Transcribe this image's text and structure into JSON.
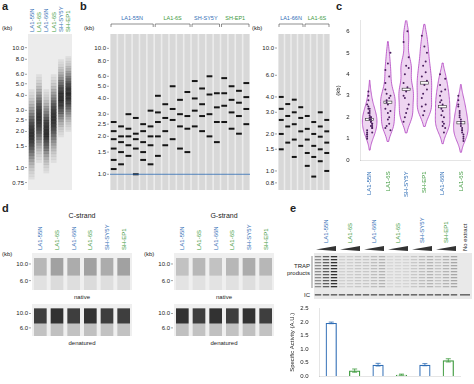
{
  "panels": {
    "a": {
      "letter": "a",
      "axis_label": "(kb)",
      "ylim_kb": [
        13,
        0.65
      ],
      "markers_kb": [
        {
          "value": 10,
          "label": "10.0"
        },
        {
          "value": 8,
          "label": "8.0"
        },
        {
          "value": 6,
          "label": "6.0"
        },
        {
          "value": 5,
          "label": "5.0"
        },
        {
          "value": 4,
          "label": "4.0"
        },
        {
          "value": 3,
          "label": "3.0"
        },
        2.5,
        {
          "value": 2,
          "label": "2.0"
        },
        1.5,
        {
          "value": 1,
          "label": "1.0"
        },
        0.75
      ],
      "lanes": [
        {
          "label": "LA1-55N",
          "color": "#2f6db5",
          "smear_kb": [
            0.8,
            4.5
          ]
        },
        {
          "label": "LA1-6S",
          "color": "#3d9a3d",
          "smear_kb": [
            1.1,
            6.0
          ]
        },
        {
          "label": "LA1-66N",
          "color": "#2f6db5",
          "smear_kb": [
            0.9,
            4.5
          ]
        },
        {
          "label": "LA1-6S",
          "color": "#3d9a3d",
          "smear_kb": [
            1.1,
            6.0
          ]
        },
        {
          "label": "SH-SY5Y",
          "color": "#2f6db5",
          "smear_kb": [
            1.8,
            8.0
          ]
        },
        {
          "label": "SH-EP1",
          "color": "#3d9a3d",
          "smear_kb": [
            2.0,
            8.5
          ]
        }
      ]
    },
    "b": {
      "letter": "b",
      "gels": [
        {
          "axis_label": "(kb)",
          "ylim_kb": [
            13,
            0.75
          ],
          "reference_line_kb": 1.0,
          "markers_kb": [
            {
              "value": 10,
              "label": "10.0"
            },
            {
              "value": 8,
              "label": "8.0"
            },
            {
              "value": 6,
              "label": "6.0"
            },
            {
              "value": 5,
              "label": "5.0"
            },
            {
              "value": 4,
              "label": "4.0"
            },
            {
              "value": 3,
              "label": "3.0"
            },
            2.5,
            {
              "value": 2,
              "label": "2.0"
            },
            1.5,
            {
              "value": 1,
              "label": "1.0"
            }
          ],
          "groups": [
            {
              "label": "LA1-55N",
              "color": "#2f6db5",
              "bands_kb": [
                [
                  2.6,
                  2.2,
                  1.9,
                  1.6,
                  1.3,
                  1.1
                ],
                [
                  2.4,
                  2.0,
                  1.8,
                  1.5,
                  1.2
                ],
                [
                  3.0,
                  2.3,
                  2.0,
                  1.7,
                  1.4
                ],
                [
                  2.8,
                  2.1,
                  1.9,
                  1.6,
                  1.0
                ],
                [
                  2.5,
                  2.2,
                  1.8,
                  1.5,
                  1.3
                ],
                [
                  3.2,
                  2.4,
                  2.0,
                  1.7,
                  1.2
                ]
              ]
            },
            {
              "label": "LA1-6S",
              "color": "#3d9a3d",
              "bands_kb": [
                [
                  4.2,
                  3.1,
                  2.6,
                  2.0,
                  1.4
                ],
                [
                  3.6,
                  2.8,
                  2.2,
                  1.7
                ],
                [
                  5.0,
                  3.3,
                  2.7,
                  1.9
                ],
                [
                  3.9,
                  3.0,
                  2.4,
                  1.6
                ],
                [
                  4.5,
                  2.9,
                  2.3,
                  1.5
                ]
              ]
            },
            {
              "label": "SH-SY5Y",
              "color": "#2f6db5",
              "bands_kb": [
                [
                  5.5,
                  4.0,
                  3.2,
                  2.4
                ],
                [
                  4.8,
                  3.6,
                  2.9,
                  2.2
                ],
                [
                  6.0,
                  4.3,
                  3.0,
                  2.0
                ],
                [
                  4.4,
                  3.4,
                  2.6,
                  1.8
                ]
              ]
            },
            {
              "label": "SH-EP1",
              "color": "#3d9a3d",
              "bands_kb": [
                [
                  5.8,
                  4.4,
                  3.5,
                  2.6
                ],
                [
                  5.0,
                  3.9,
                  3.1,
                  2.3
                ],
                [
                  4.6,
                  3.7,
                  2.9,
                  2.1
                ],
                [
                  5.3,
                  4.1,
                  3.3,
                  2.5
                ]
              ]
            }
          ]
        },
        {
          "axis_label": "(kb)",
          "ylim_kb": [
            13,
            0.7
          ],
          "markers_kb": [
            {
              "value": 10,
              "label": "10.0"
            },
            {
              "value": 6,
              "label": "6.0"
            },
            {
              "value": 4,
              "label": "4.0"
            },
            {
              "value": 3,
              "label": "3.0"
            },
            {
              "value": 2,
              "label": "2.0"
            },
            1.5,
            {
              "value": 1,
              "label": "1.0"
            },
            0.8
          ],
          "groups": [
            {
              "label": "LA1-66N",
              "color": "#2f6db5",
              "bands_kb": [
                [
                  4.0,
                  3.2,
                  2.6,
                  2.0,
                  1.5
                ],
                [
                  3.5,
                  2.8,
                  2.3,
                  1.7
                ],
                [
                  3.8,
                  3.0,
                  2.4,
                  1.8,
                  1.3
                ],
                [
                  3.3,
                  2.7,
                  2.1,
                  1.6
                ]
              ]
            },
            {
              "label": "LA1-6S",
              "color": "#3d9a3d",
              "bands_kb": [
                [
                  2.8,
                  2.2,
                  1.8,
                  1.4,
                  1.1
                ],
                [
                  2.5,
                  2.0,
                  1.6,
                  1.3,
                  0.9
                ],
                [
                  3.0,
                  2.3,
                  1.9,
                  1.5,
                  1.2
                ],
                [
                  2.6,
                  2.1,
                  1.7,
                  1.4,
                  1.0
                ]
              ]
            }
          ]
        }
      ]
    },
    "d": {
      "letter": "d",
      "blots": [
        {
          "title": "C-strand",
          "axis_label": "(kb)",
          "ylim_kb": [
            14,
            4.5
          ],
          "markers_kb": [
            {
              "value": 10,
              "label": "10.0"
            },
            {
              "value": 6,
              "label": "6.0"
            }
          ],
          "lanes": [
            {
              "label": "LA1-55N",
              "color": "#2f6db5"
            },
            {
              "label": "LA1-6S",
              "color": "#3d9a3d"
            },
            {
              "label": "LA1-66N",
              "color": "#2f6db5"
            },
            {
              "label": "LA1-6S",
              "color": "#3d9a3d"
            },
            {
              "label": "SH-SY5Y",
              "color": "#2f6db5"
            },
            {
              "label": "SH-EP1",
              "color": "#3d9a3d"
            }
          ],
          "rows": [
            {
              "label": "native",
              "signal": [
                0.25,
                0.35,
                0.3,
                0.35,
                0.3,
                0.35
              ]
            },
            {
              "label": "denatured",
              "signal": [
                0.8,
                0.85,
                0.8,
                0.85,
                0.8,
                0.8
              ]
            }
          ]
        },
        {
          "title": "G-strand",
          "axis_label": "(kb)",
          "ylim_kb": [
            14,
            4.5
          ],
          "markers_kb": [
            {
              "value": 10,
              "label": "10.0"
            },
            {
              "value": 6,
              "label": "6.0"
            }
          ],
          "lanes": [
            {
              "label": "LA1-55N",
              "color": "#2f6db5"
            },
            {
              "label": "LA1-6S",
              "color": "#3d9a3d"
            },
            {
              "label": "LA1-66N",
              "color": "#2f6db5"
            },
            {
              "label": "LA1-6S",
              "color": "#3d9a3d"
            },
            {
              "label": "SH-SY5Y",
              "color": "#2f6db5"
            },
            {
              "label": "SH-EP1",
              "color": "#3d9a3d"
            }
          ],
          "rows": [
            {
              "label": "native",
              "signal": [
                0.2,
                0.25,
                0.2,
                0.25,
                0.3,
                0.25
              ]
            },
            {
              "label": "denatured",
              "signal": [
                0.85,
                0.8,
                0.85,
                0.8,
                0.85,
                0.8
              ]
            }
          ]
        }
      ]
    },
    "e": {
      "letter": "e",
      "products_label": "TRAP products",
      "ic_label": "IC",
      "control_lane": "No extract",
      "lanes": [
        {
          "label": "LA1-55N",
          "color": "#2f6db5"
        },
        {
          "label": "LA1-6S",
          "color": "#3d9a3d"
        },
        {
          "label": "LA1-66N",
          "color": "#2f6db5"
        },
        {
          "label": "LA1-6S",
          "color": "#3d9a3d"
        },
        {
          "label": "SH-SY5Y",
          "color": "#2f6db5"
        },
        {
          "label": "SH-EP1",
          "color": "#3d9a3d"
        }
      ]
    }
  },
  "chart_data": [
    {
      "type": "violin",
      "letter": "c",
      "y_label": "(kb)",
      "categories": [
        "LA1-55N",
        "LA1-6S",
        "SH-SY5Y",
        "SH-EP1",
        "LA1-66N",
        "LA1-6S"
      ],
      "category_colors": [
        "#2f6db5",
        "#3d9a3d",
        "#2f6db5",
        "#3d9a3d",
        "#2f6db5",
        "#3d9a3d"
      ],
      "color": "#b03fc0",
      "values": [
        [
          2.6,
          2.2,
          1.9,
          1.6,
          1.3,
          1.1,
          2.4,
          2.0,
          1.8,
          1.5,
          1.2,
          3.0,
          2.3,
          2.0,
          1.7,
          1.4,
          2.8,
          2.1,
          1.9,
          1.6,
          1.0,
          2.5,
          2.2,
          1.8,
          1.5,
          1.3,
          3.2,
          2.4,
          2.0,
          1.7,
          1.2
        ],
        [
          4.2,
          3.1,
          2.6,
          2.0,
          1.4,
          3.6,
          2.8,
          2.2,
          1.7,
          5.0,
          3.3,
          2.7,
          1.9,
          3.9,
          3.0,
          2.4,
          1.6,
          4.5,
          2.9,
          2.3,
          1.5
        ],
        [
          5.5,
          4.0,
          3.2,
          2.4,
          4.8,
          3.6,
          2.9,
          2.2,
          6.0,
          4.3,
          3.0,
          2.0,
          4.4,
          3.4,
          2.6,
          1.8
        ],
        [
          5.8,
          4.4,
          3.5,
          2.6,
          5.0,
          3.9,
          3.1,
          2.3,
          4.6,
          3.7,
          2.9,
          2.1,
          5.3,
          4.1,
          3.3,
          2.5
        ],
        [
          4.0,
          3.2,
          2.6,
          2.0,
          1.5,
          3.5,
          2.8,
          2.3,
          1.7,
          3.8,
          3.0,
          2.4,
          1.8,
          1.3,
          3.3,
          2.7,
          2.1,
          1.6
        ],
        [
          2.8,
          2.2,
          1.8,
          1.4,
          1.1,
          2.5,
          2.0,
          1.6,
          1.3,
          0.9,
          3.0,
          2.3,
          1.9,
          1.5,
          1.2,
          2.6,
          2.1,
          1.7,
          1.4,
          1.0
        ]
      ],
      "ylim": [
        0,
        6.5
      ],
      "yticks": [
        0,
        1,
        2,
        3,
        4,
        5,
        6
      ],
      "grid": false
    },
    {
      "type": "bar",
      "y_label": "Specific Activity (A.U.)",
      "categories": [
        "LA1-55N",
        "LA1-6S",
        "LA1-66N",
        "LA1-6S",
        "SH-SY5Y",
        "SH-EP1"
      ],
      "values": [
        1.97,
        0.2,
        0.42,
        0.05,
        0.42,
        0.58
      ],
      "errors": [
        0.03,
        0.06,
        0.05,
        0.02,
        0.04,
        0.06
      ],
      "colors": [
        "#2f6db5",
        "#3d9a3d",
        "#2f6db5",
        "#3d9a3d",
        "#2f6db5",
        "#3d9a3d"
      ],
      "ylim": [
        0,
        2.5
      ],
      "yticks": [
        {
          "value": 0,
          "label": "0.0"
        },
        0.5,
        {
          "value": 1,
          "label": "1.0"
        },
        1.5,
        {
          "value": 2,
          "label": "2.0"
        },
        2.5
      ],
      "grid": false,
      "tick_labels": "y"
    }
  ]
}
